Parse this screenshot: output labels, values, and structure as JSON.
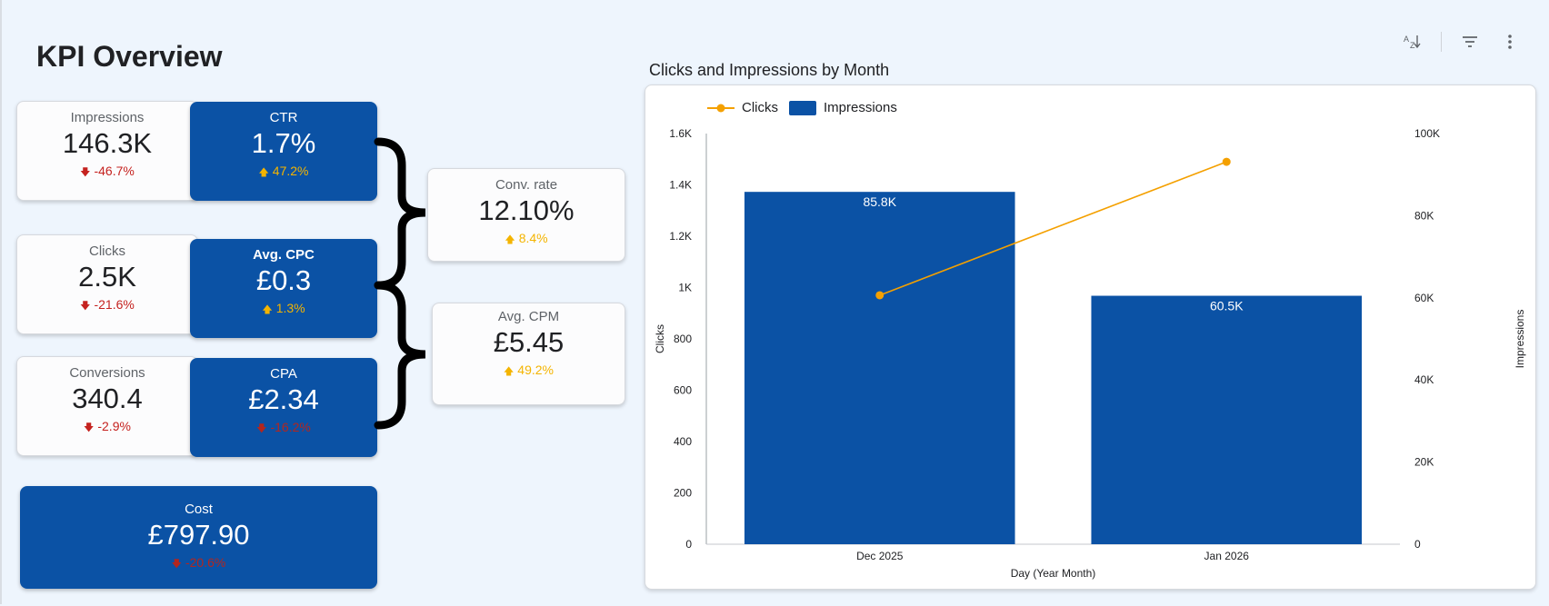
{
  "page": {
    "title": "KPI Overview"
  },
  "colors": {
    "blue": "#0b52a5",
    "orange": "#f4a000",
    "up": "#f4b400",
    "down": "#c5221f"
  },
  "toolbar": {
    "icons": [
      "sort-az-icon",
      "filter-icon",
      "more-vert-icon"
    ]
  },
  "kpis": {
    "impressions": {
      "label": "Impressions",
      "value": "146.3K",
      "delta": "-46.7%",
      "direction": "down"
    },
    "ctr": {
      "label": "CTR",
      "value": "1.7%",
      "delta": "47.2%",
      "direction": "up"
    },
    "clicks": {
      "label": "Clicks",
      "value": "2.5K",
      "delta": "-21.6%",
      "direction": "down"
    },
    "cpc": {
      "label": "Avg. CPC",
      "value": "£0.3",
      "delta": "1.3%",
      "direction": "up"
    },
    "conversions": {
      "label": "Conversions",
      "value": "340.4",
      "delta": "-2.9%",
      "direction": "down"
    },
    "cpa": {
      "label": "CPA",
      "value": "£2.34",
      "delta": "-16.2%",
      "direction": "down"
    },
    "conv_rate": {
      "label": "Conv. rate",
      "value": "12.10%",
      "delta": "8.4%",
      "direction": "up"
    },
    "cpm": {
      "label": "Avg. CPM",
      "value": "£5.45",
      "delta": "49.2%",
      "direction": "up"
    },
    "cost": {
      "label": "Cost",
      "value": "£797.90",
      "delta": "-20.6%",
      "direction": "down"
    }
  },
  "chart_data": {
    "type": "bar",
    "title": "Clicks and Impressions by Month",
    "categories": [
      "Dec 2025",
      "Jan 2026"
    ],
    "xlabel": "Day (Year Month)",
    "ylabel": "Clicks",
    "y2label": "Impressions",
    "legend_position": "top-left",
    "series": [
      {
        "name": "Clicks",
        "type": "line",
        "axis": "left",
        "values": [
          970,
          1490
        ],
        "color": "#f4a000"
      },
      {
        "name": "Impressions",
        "type": "bar",
        "axis": "right",
        "values": [
          85800,
          60500
        ],
        "labels": [
          "85.8K",
          "60.5K"
        ],
        "color": "#0b52a5"
      }
    ],
    "ylim": [
      0,
      1600
    ],
    "y2lim": [
      0,
      100000
    ],
    "y_ticks": [
      "0",
      "200",
      "400",
      "600",
      "800",
      "1K",
      "1.2K",
      "1.4K",
      "1.6K"
    ],
    "y2_ticks": [
      "0",
      "20K",
      "40K",
      "60K",
      "80K",
      "100K"
    ],
    "grid": false
  }
}
